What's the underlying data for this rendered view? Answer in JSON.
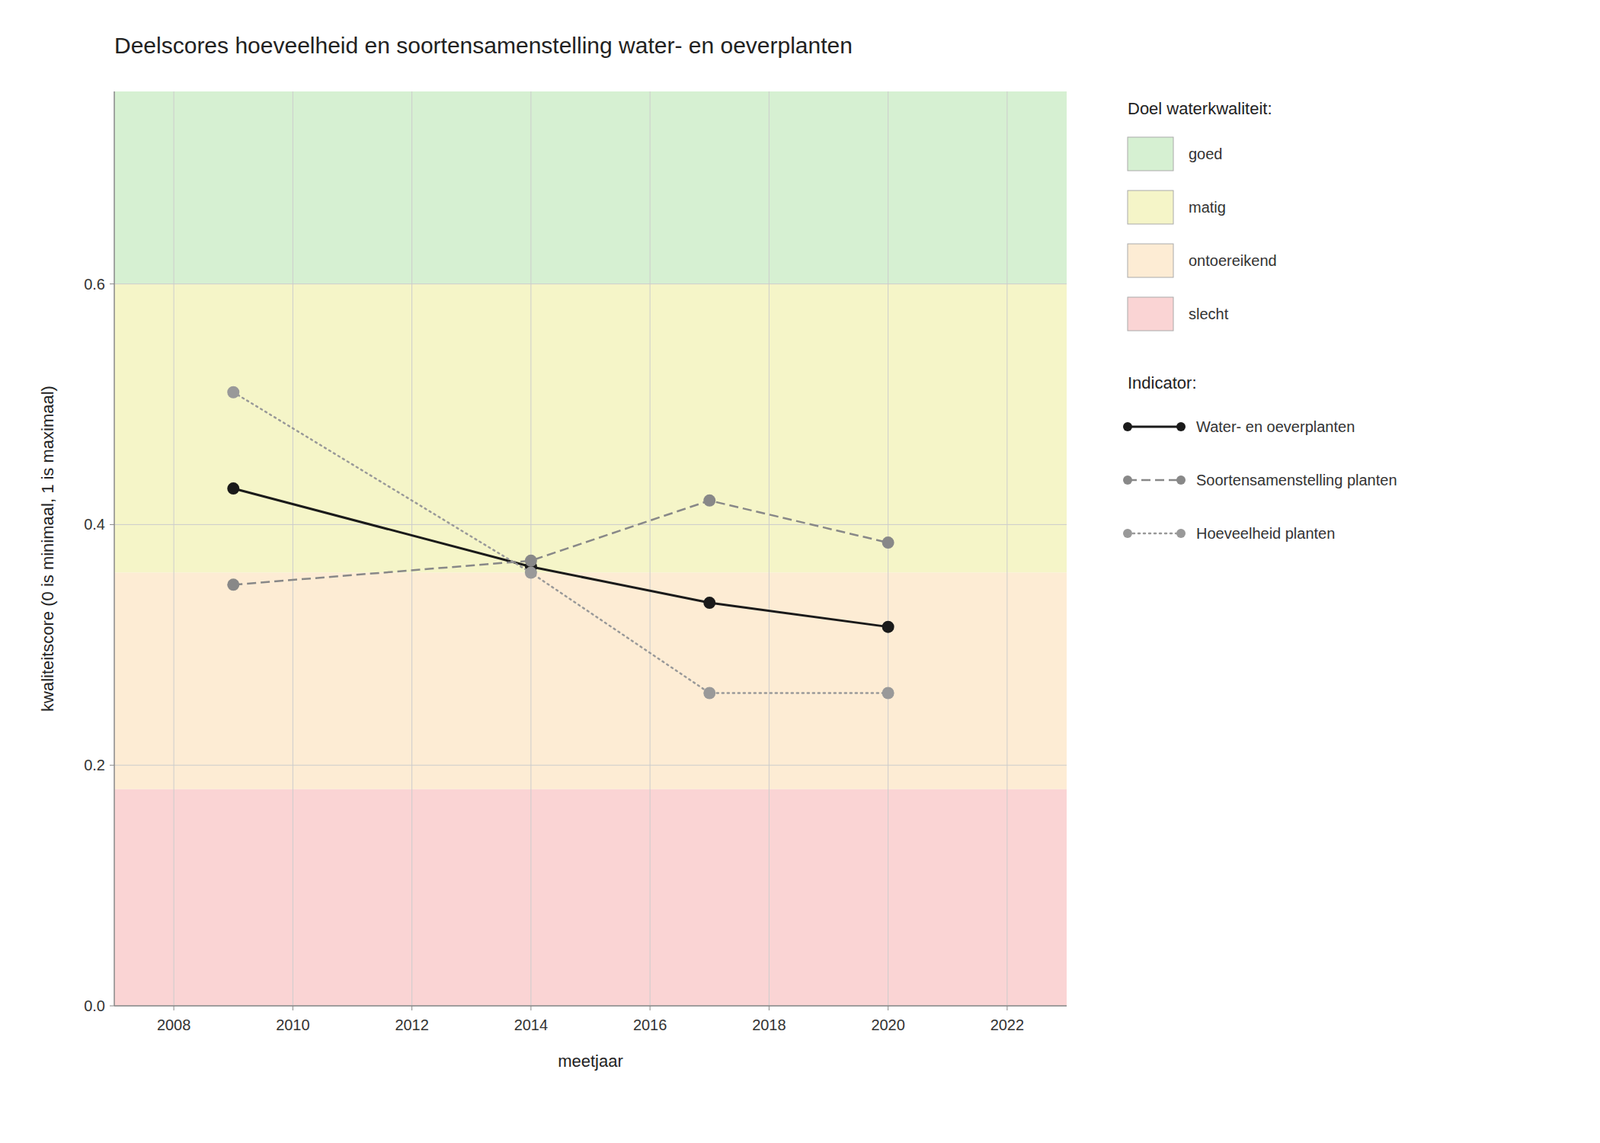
{
  "chart_data": {
    "type": "line",
    "title": "Deelscores hoeveelheid en soortensamenstelling water- en oeverplanten",
    "x_label": "meetjaar",
    "y_label": "kwaliteitscore (0 is minimaal, 1 is maximaal)",
    "xlim": [
      2007,
      2023
    ],
    "ylim": [
      0.0,
      0.76
    ],
    "xticks": [
      2008,
      2010,
      2012,
      2014,
      2016,
      2018,
      2020,
      2022
    ],
    "yticks": [
      {
        "value": 0.0,
        "label": "0.0"
      },
      0.2,
      0.4,
      0.6
    ],
    "grid": true,
    "zone_legend_title": "Doel waterkwaliteit:",
    "series_legend_title": "Indicator:",
    "zones": [
      {
        "ymin": 0.6,
        "ymax": 0.76,
        "color": "#d6f0d2",
        "label": "goed"
      },
      {
        "ymin": 0.36,
        "ymax": 0.6,
        "color": "#f5f5c8",
        "label": "matig"
      },
      {
        "ymin": 0.18,
        "ymax": 0.36,
        "color": "#fdecd4",
        "label": "ontoereikend"
      },
      {
        "ymin": 0.0,
        "ymax": 0.18,
        "color": "#fad4d4",
        "label": "slecht"
      }
    ],
    "x": [
      2009,
      2014,
      2017,
      2020
    ],
    "series": [
      {
        "name": "Water- en oeverplanten",
        "color": "#1a1a1a",
        "line_style": "solid",
        "marker": "circle",
        "values": [
          0.43,
          0.365,
          0.335,
          0.315
        ]
      },
      {
        "name": "Soortensamenstelling planten",
        "color": "#888888",
        "line_style": "dashed",
        "marker": "circle",
        "values": [
          0.35,
          0.37,
          0.42,
          0.385
        ]
      },
      {
        "name": "Hoeveelheid planten",
        "color": "#999999",
        "line_style": "dotted",
        "marker": "circle",
        "values": [
          0.51,
          0.36,
          0.26,
          0.26
        ]
      }
    ]
  }
}
